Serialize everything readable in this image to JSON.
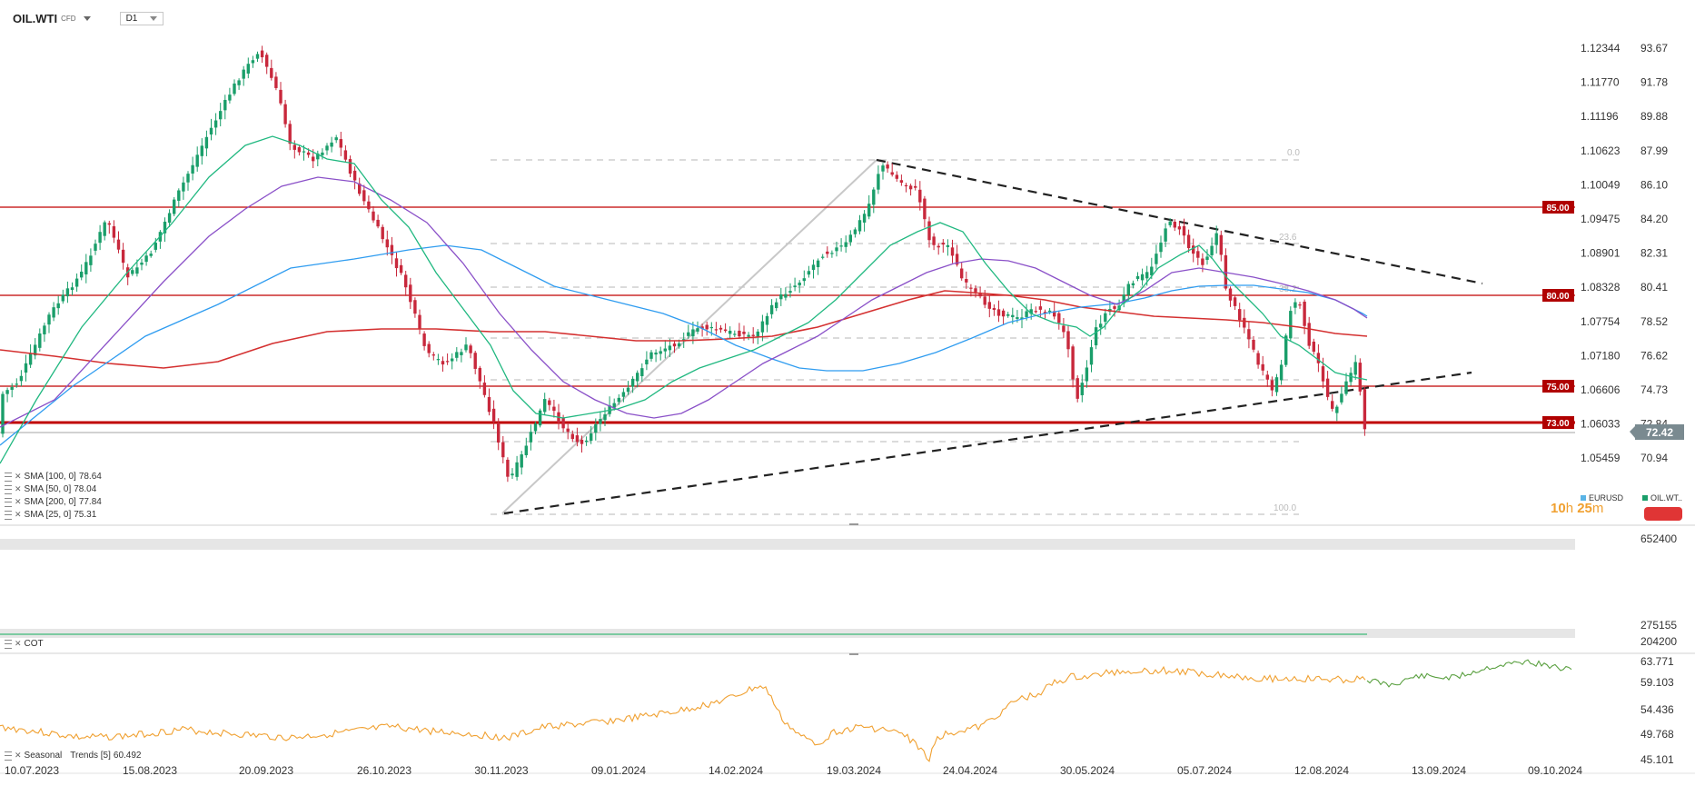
{
  "header": {
    "symbol": "OIL.WTI",
    "symbol_type": "CFD",
    "timeframe": "D1"
  },
  "right_axis_primary": [
    "93.67",
    "91.78",
    "89.88",
    "87.99",
    "86.10",
    "84.20",
    "82.31",
    "80.41",
    "78.52",
    "76.62",
    "74.73",
    "72.84",
    "70.94"
  ],
  "right_axis_secondary": [
    "1.12344",
    "1.11770",
    "1.11196",
    "1.10623",
    "1.10049",
    "1.09475",
    "1.08901",
    "1.08328",
    "1.07754",
    "1.07180",
    "1.06606",
    "1.06033",
    "1.05459"
  ],
  "current_price": "72.42",
  "level_labels": [
    "85.00",
    "80.00",
    "75.00",
    "73.00"
  ],
  "fib_labels": [
    "0.0",
    "23.6",
    "38.2",
    "100.0"
  ],
  "indicators": [
    {
      "label": "SMA [100, 0]",
      "value": "78.64",
      "color": "#2f9cf0"
    },
    {
      "label": "SMA [50, 0]",
      "value": "78.04",
      "color": "#8a50c8"
    },
    {
      "label": "SMA [200, 0]",
      "value": "77.84",
      "color": "#d43030"
    },
    {
      "label": "SMA [25, 0]",
      "value": "75.31",
      "color": "#20b880"
    }
  ],
  "compare_legend": {
    "eurusd": "EURUSD",
    "oil": "OIL.WT.."
  },
  "timer": {
    "h": "10",
    "h_unit": "h",
    "m": "25",
    "m_unit": "m"
  },
  "cot_panel": {
    "label": "COT",
    "axis": [
      "652400",
      "275155",
      "204200"
    ]
  },
  "seasonal_panel": {
    "label": "Seasonal",
    "label2": "Trends [5]",
    "value": "60.492",
    "axis": [
      "63.771",
      "59.103",
      "54.436",
      "49.768",
      "45.101"
    ]
  },
  "x_axis": [
    "10.07.2023",
    "15.08.2023",
    "20.09.2023",
    "26.10.2023",
    "30.11.2023",
    "09.01.2024",
    "14.02.2024",
    "19.03.2024",
    "24.04.2024",
    "30.05.2024",
    "05.07.2024",
    "12.08.2024",
    "13.09.2024",
    "09.10.2024"
  ],
  "colors": {
    "bull": "#1a9e6a",
    "bear": "#c8283c",
    "level": "#c00000",
    "sma25": "#20b880",
    "sma50": "#8a50c8",
    "sma100": "#2f9cf0",
    "sma200": "#d43030",
    "cot": "#58c08a",
    "seasonal": "#f0a030",
    "seasonal_fwd": "#5aa040",
    "current_price_bg": "#7a8a90"
  },
  "chart_data": {
    "type": "candlestick",
    "title": "OIL.WTI CFD D1",
    "ylim": [
      70.0,
      94.5
    ],
    "horizontal_levels": [
      85.0,
      80.0,
      75.0,
      73.0
    ],
    "series": [
      {
        "name": "SMA [100, 0]",
        "last": 78.64
      },
      {
        "name": "SMA [50, 0]",
        "last": 78.04
      },
      {
        "name": "SMA [200, 0]",
        "last": 77.84
      },
      {
        "name": "SMA [25, 0]",
        "last": 75.31
      }
    ],
    "last_price": 72.42,
    "x_ticks": [
      "10.07.2023",
      "15.08.2023",
      "20.09.2023",
      "26.10.2023",
      "30.11.2023",
      "09.01.2024",
      "14.02.2024",
      "19.03.2024",
      "24.04.2024",
      "30.05.2024",
      "05.07.2024",
      "12.08.2024",
      "13.09.2024",
      "09.10.2024"
    ],
    "approx_close_path": [
      [
        "10.07.2023",
        73.8
      ],
      [
        "15.08.2023",
        82.8
      ],
      [
        "20.09.2023",
        90.6
      ],
      [
        "26.10.2023",
        84.2
      ],
      [
        "30.11.2023",
        76.0
      ],
      [
        "09.01.2024",
        72.2
      ],
      [
        "14.02.2024",
        77.4
      ],
      [
        "19.03.2024",
        83.0
      ],
      [
        "24.04.2024",
        83.0
      ],
      [
        "30.05.2024",
        77.5
      ],
      [
        "05.07.2024",
        83.5
      ],
      [
        "12.08.2024",
        77.4
      ],
      [
        "28.08.2024",
        72.4
      ]
    ]
  }
}
